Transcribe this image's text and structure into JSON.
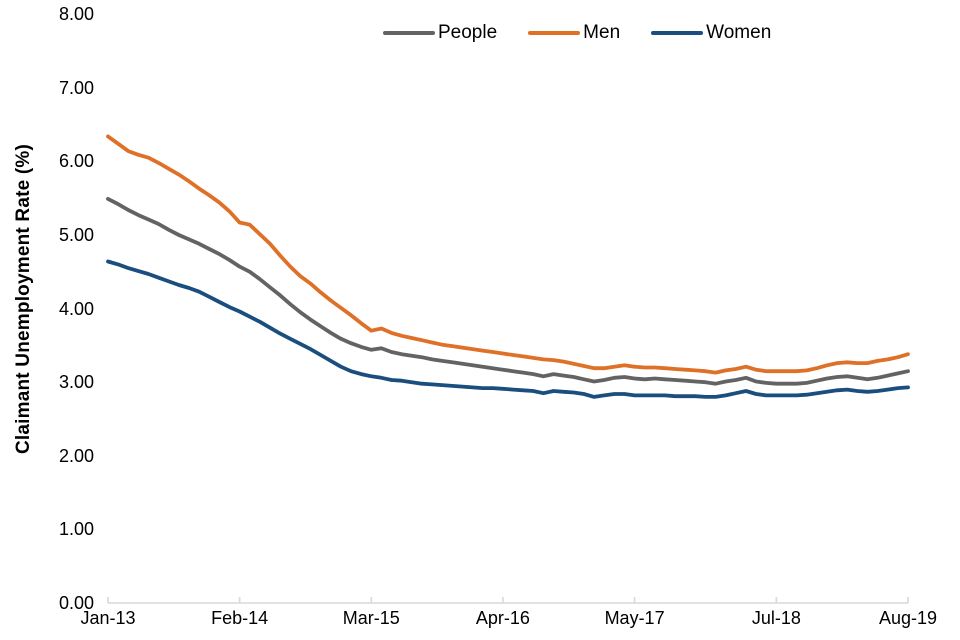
{
  "chart_data": {
    "type": "line",
    "ylabel": "Claimant Unemployment Rate (%)",
    "xlabel": "",
    "ylim": [
      0,
      8
    ],
    "grid": false,
    "legend_position": "top",
    "axis_color": "#D9D9D9",
    "text_color": "#000000",
    "n_points": 80,
    "x_start": "Jan-13",
    "x_end": "Aug-19",
    "y_ticks": [
      "0.00",
      "1.00",
      "2.00",
      "3.00",
      "4.00",
      "5.00",
      "6.00",
      "7.00",
      "8.00"
    ],
    "x_ticks": [
      {
        "label": "Jan-13",
        "index": 0
      },
      {
        "label": "Feb-14",
        "index": 13
      },
      {
        "label": "Mar-15",
        "index": 26
      },
      {
        "label": "Apr-16",
        "index": 39
      },
      {
        "label": "May-17",
        "index": 52
      },
      {
        "label": "Jul-18",
        "index": 66
      },
      {
        "label": "Aug-19",
        "index": 79
      }
    ],
    "series": [
      {
        "name": "People",
        "color": "#636363",
        "values": [
          5.49,
          5.42,
          5.34,
          5.27,
          5.21,
          5.15,
          5.07,
          5.0,
          4.94,
          4.88,
          4.81,
          4.74,
          4.66,
          4.57,
          4.5,
          4.4,
          4.29,
          4.18,
          4.06,
          3.95,
          3.85,
          3.76,
          3.67,
          3.59,
          3.53,
          3.48,
          3.44,
          3.46,
          3.41,
          3.38,
          3.36,
          3.34,
          3.31,
          3.29,
          3.27,
          3.25,
          3.23,
          3.21,
          3.19,
          3.17,
          3.15,
          3.13,
          3.11,
          3.08,
          3.11,
          3.09,
          3.07,
          3.04,
          3.01,
          3.03,
          3.06,
          3.07,
          3.05,
          3.04,
          3.05,
          3.04,
          3.03,
          3.02,
          3.01,
          3.0,
          2.98,
          3.01,
          3.03,
          3.06,
          3.01,
          2.99,
          2.98,
          2.98,
          2.98,
          2.99,
          3.02,
          3.05,
          3.07,
          3.08,
          3.06,
          3.04,
          3.06,
          3.09,
          3.12,
          3.15
        ]
      },
      {
        "name": "Men",
        "color": "#DE7127",
        "values": [
          6.34,
          6.24,
          6.14,
          6.09,
          6.05,
          5.98,
          5.9,
          5.82,
          5.73,
          5.63,
          5.54,
          5.44,
          5.32,
          5.17,
          5.14,
          5.01,
          4.88,
          4.72,
          4.57,
          4.44,
          4.34,
          4.22,
          4.11,
          4.01,
          3.91,
          3.8,
          3.7,
          3.73,
          3.67,
          3.63,
          3.6,
          3.57,
          3.54,
          3.51,
          3.49,
          3.47,
          3.45,
          3.43,
          3.41,
          3.39,
          3.37,
          3.35,
          3.33,
          3.31,
          3.3,
          3.28,
          3.25,
          3.22,
          3.19,
          3.19,
          3.21,
          3.23,
          3.21,
          3.2,
          3.2,
          3.19,
          3.18,
          3.17,
          3.16,
          3.15,
          3.13,
          3.16,
          3.18,
          3.21,
          3.17,
          3.15,
          3.15,
          3.15,
          3.15,
          3.16,
          3.19,
          3.23,
          3.26,
          3.27,
          3.26,
          3.26,
          3.29,
          3.31,
          3.34,
          3.38
        ]
      },
      {
        "name": "Women",
        "color": "#1A4E7E",
        "values": [
          4.64,
          4.6,
          4.55,
          4.51,
          4.47,
          4.42,
          4.37,
          4.32,
          4.28,
          4.23,
          4.16,
          4.09,
          4.02,
          3.96,
          3.89,
          3.82,
          3.74,
          3.66,
          3.59,
          3.52,
          3.45,
          3.37,
          3.29,
          3.21,
          3.15,
          3.11,
          3.08,
          3.06,
          3.03,
          3.02,
          3.0,
          2.98,
          2.97,
          2.96,
          2.95,
          2.94,
          2.93,
          2.92,
          2.92,
          2.91,
          2.9,
          2.89,
          2.88,
          2.85,
          2.88,
          2.87,
          2.86,
          2.84,
          2.8,
          2.82,
          2.84,
          2.84,
          2.82,
          2.82,
          2.82,
          2.82,
          2.81,
          2.81,
          2.81,
          2.8,
          2.8,
          2.82,
          2.85,
          2.88,
          2.84,
          2.82,
          2.82,
          2.82,
          2.82,
          2.83,
          2.85,
          2.87,
          2.89,
          2.9,
          2.88,
          2.87,
          2.88,
          2.9,
          2.92,
          2.93
        ]
      }
    ]
  }
}
